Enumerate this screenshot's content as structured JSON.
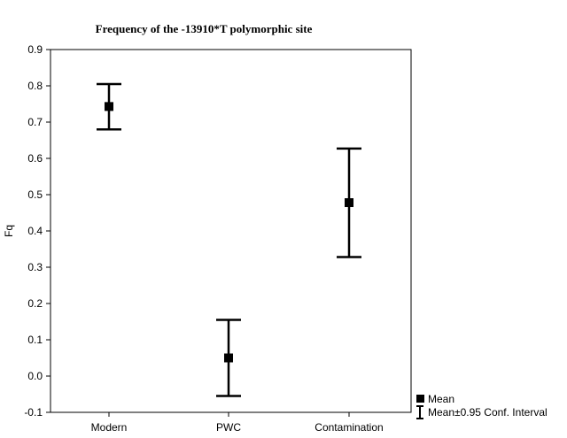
{
  "chart_data": {
    "type": "scatter",
    "title": "Frequency of the -13910*T polymorphic site",
    "xlabel": "",
    "ylabel": "Fq",
    "categories": [
      "Modern",
      "PWC",
      "Contamination"
    ],
    "ylim": [
      -0.1,
      0.9
    ],
    "yticks": [
      -0.1,
      0.0,
      0.1,
      0.2,
      0.3,
      0.4,
      0.5,
      0.6,
      0.7,
      0.8,
      0.9
    ],
    "ytick_labels": [
      "-0.1",
      "0.0",
      "0.1",
      "0.2",
      "0.3",
      "0.4",
      "0.5",
      "0.6",
      "0.7",
      "0.8",
      "0.9"
    ],
    "series": [
      {
        "name": "Mean",
        "values": [
          0.743,
          0.05,
          0.478
        ],
        "ci_low": [
          0.68,
          -0.055,
          0.328
        ],
        "ci_high": [
          0.805,
          0.155,
          0.627
        ]
      }
    ],
    "legend": {
      "placement": "bottom-right",
      "mean_label": "Mean",
      "ci_label": "Mean±0.95 Conf. Interval"
    },
    "grid": false,
    "colors": {
      "marker": "#000000",
      "axis": "#000000",
      "background": "#ffffff"
    }
  }
}
